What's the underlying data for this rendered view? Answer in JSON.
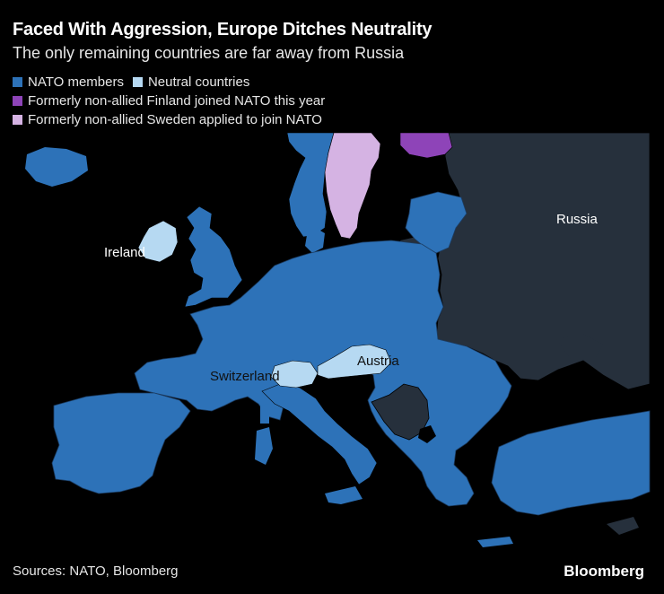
{
  "header": {
    "title": "Faced With Aggression, Europe Ditches Neutrality",
    "subtitle": "The only remaining countries are far away from Russia"
  },
  "legend": {
    "items": [
      {
        "label": "NATO members",
        "color": "#2d72b8"
      },
      {
        "label": "Neutral countries",
        "color": "#b6d9f2"
      },
      {
        "label": "Formerly non-allied Finland joined NATO this year",
        "color": "#8e44b8"
      },
      {
        "label": "Formerly non-allied Sweden applied to join NATO",
        "color": "#d5b3e3"
      }
    ]
  },
  "map": {
    "labels": {
      "russia": "Russia",
      "ireland": "Ireland",
      "switzerland": "Switzerland",
      "austria": "Austria"
    },
    "colors": {
      "nato": "#2d72b8",
      "neutral": "#b6d9f2",
      "finland": "#8e44b8",
      "sweden": "#d5b3e3",
      "other": "#26303c",
      "sea": "#000000",
      "borders": "#1c3d63"
    }
  },
  "footer": {
    "source": "Sources: NATO, Bloomberg",
    "brand": "Bloomberg"
  }
}
